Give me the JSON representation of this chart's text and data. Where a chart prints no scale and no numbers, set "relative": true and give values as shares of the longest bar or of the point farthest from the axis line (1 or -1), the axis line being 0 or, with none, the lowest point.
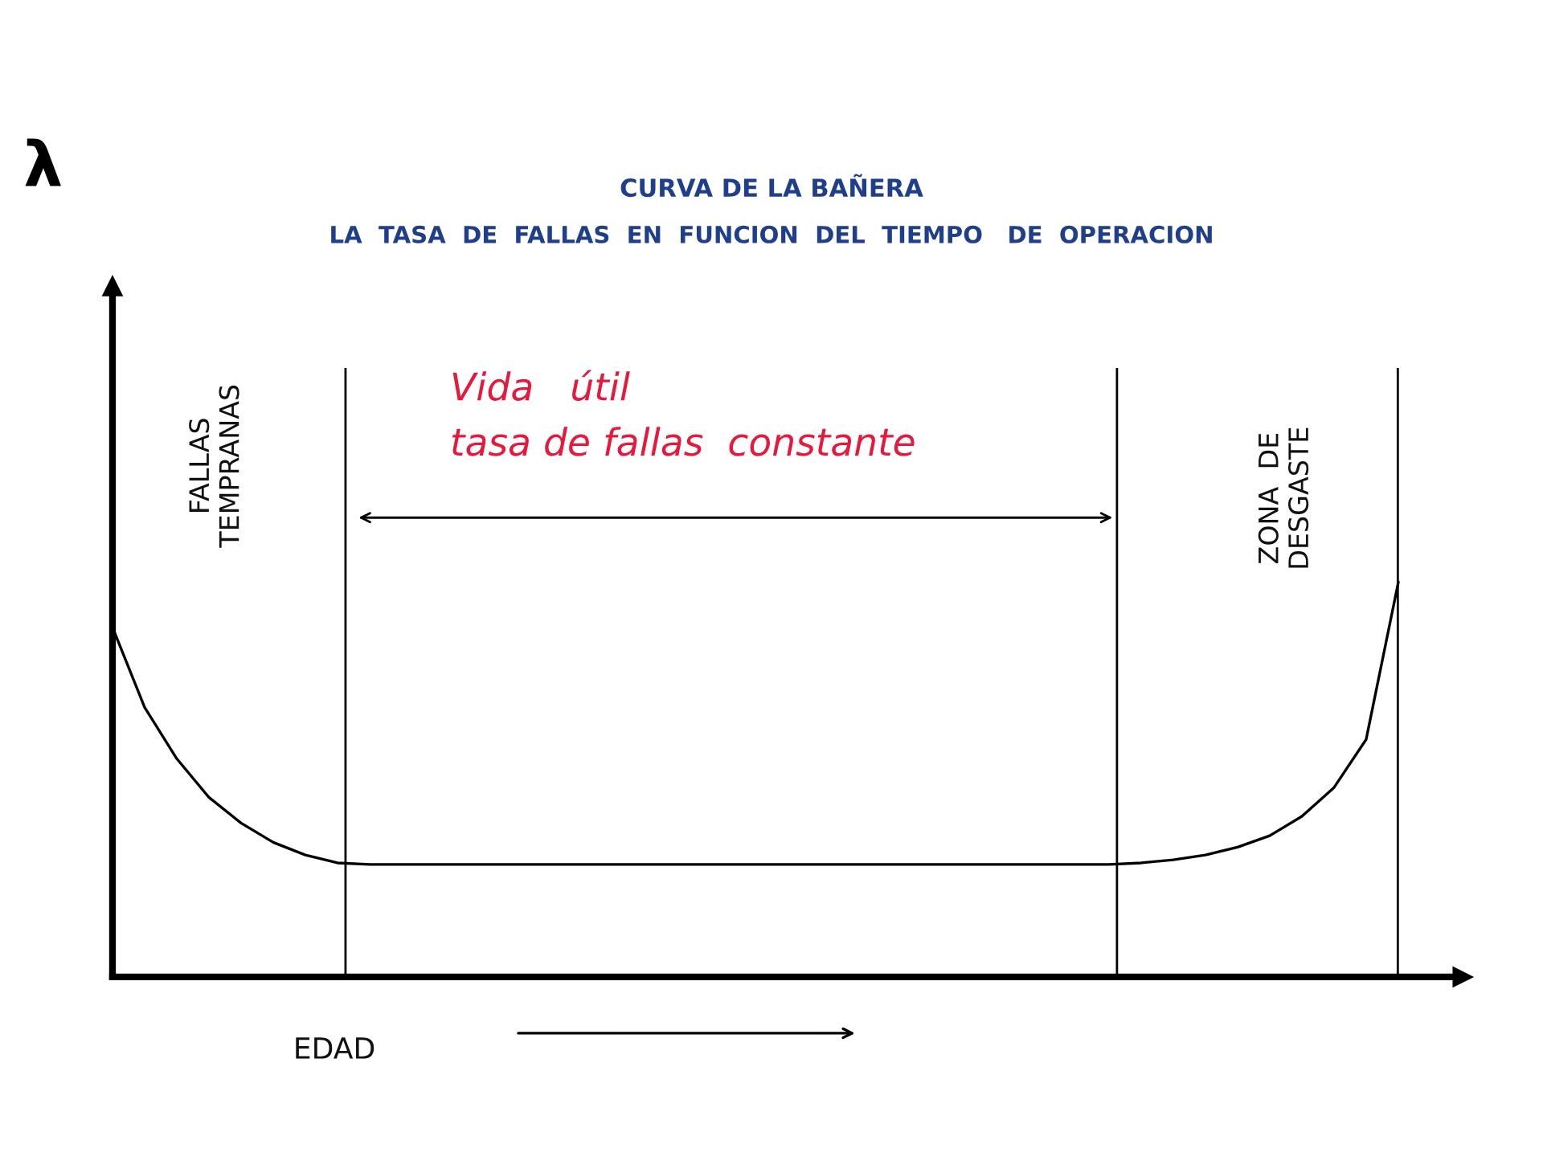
{
  "chart_data": {
    "type": "line",
    "relative": true,
    "title": "CURVA DE LA BAÑERA",
    "subtitle": "LA  TASA  DE  FALLAS  EN  FUNCION  DEL  TIEMPO   DE  OPERACION",
    "xlabel": "EDAD",
    "categories": [
      null,
      null,
      null,
      null,
      null,
      null,
      null,
      null,
      null,
      null,
      null,
      null,
      null,
      null,
      null,
      null,
      null,
      null,
      null,
      null,
      null,
      null,
      null,
      null,
      null,
      null,
      null,
      null,
      null,
      null,
      null,
      null,
      null,
      null,
      null,
      null,
      null,
      null,
      null,
      null,
      null
    ],
    "series": [
      {
        "color": "#000000",
        "values": [
          0.886,
          0.683,
          0.553,
          0.455,
          0.39,
          0.341,
          0.309,
          0.289,
          0.285,
          0.285,
          0.285,
          0.285,
          0.285,
          0.285,
          0.285,
          0.285,
          0.285,
          0.285,
          0.285,
          0.285,
          0.285,
          0.285,
          0.285,
          0.285,
          0.285,
          0.285,
          0.285,
          0.285,
          0.285,
          0.285,
          0.285,
          0.285,
          0.289,
          0.297,
          0.309,
          0.329,
          0.358,
          0.407,
          0.48,
          0.602,
          1
        ]
      }
    ],
    "annotations": [
      "λ",
      "Vida   útil",
      "tasa de fallas  constante",
      "FALLAS\nTEMPRANAS",
      "ZONA  DE\nDESGASTE"
    ]
  }
}
